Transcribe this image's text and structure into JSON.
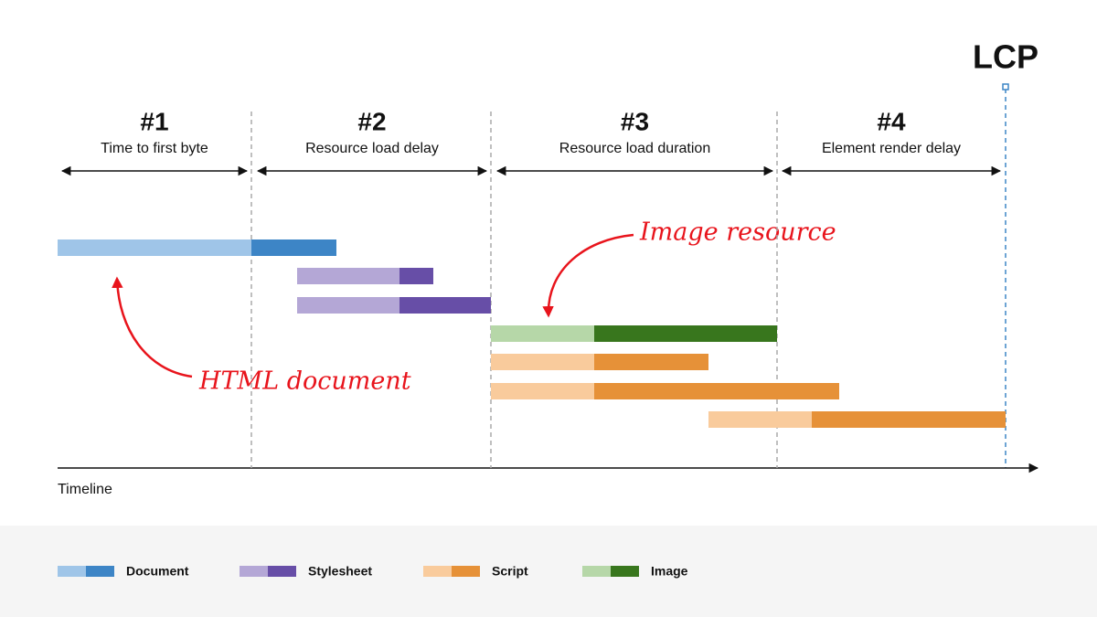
{
  "phases": [
    {
      "number": "#1",
      "label": "Time to first byte"
    },
    {
      "number": "#2",
      "label": "Resource load delay"
    },
    {
      "number": "#3",
      "label": "Resource load duration"
    },
    {
      "number": "#4",
      "label": "Element render delay"
    }
  ],
  "marker": "LCP",
  "annotations": {
    "image": "Image resource",
    "document": "HTML document"
  },
  "axis_label": "Timeline",
  "legend": [
    "Document",
    "Stylesheet",
    "Script",
    "Image"
  ]
}
